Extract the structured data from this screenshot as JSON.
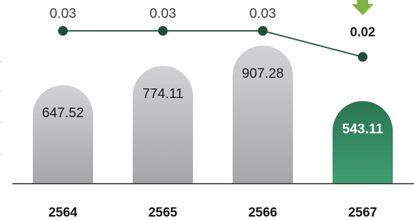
{
  "chart_data": {
    "type": "bar",
    "categories": [
      "2564",
      "2565",
      "2566",
      "2567"
    ],
    "bar_values": [
      "647.52",
      "774.11",
      "907.28",
      "543.11"
    ],
    "line_values": [
      "0.03",
      "0.03",
      "0.03",
      "0.02"
    ],
    "highlight_index": 3,
    "bar_ylim": [
      0,
      1000
    ],
    "line_ylim": [
      0,
      0.04
    ],
    "colors": {
      "bar": "#b9b9bb",
      "bar_highlight": "#2e8a62",
      "line": "#2f5a48",
      "marker": "#214d3a",
      "arrow": "#7cb342",
      "axis": "#222222"
    },
    "annotations": [
      {
        "type": "down-arrow-icon",
        "near": "2567"
      }
    ]
  }
}
